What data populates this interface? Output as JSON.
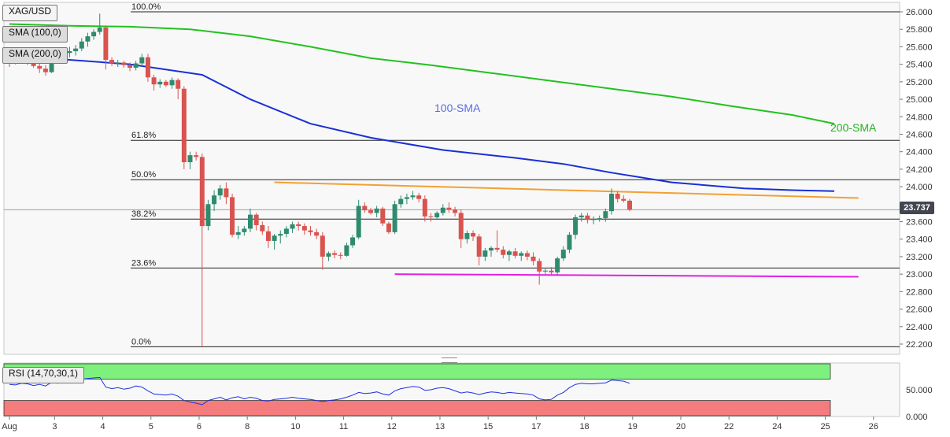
{
  "symbol": "XAG/USD",
  "indicators": {
    "sma100_label": "SMA (100,0)",
    "sma200_label": "SMA (200,0)",
    "rsi_label": "RSI (14,70,30,1)"
  },
  "annotations": {
    "sma100": "100-SMA",
    "sma200": "200-SMA"
  },
  "current_price": "23.737",
  "colors": {
    "up": "#2e8b6e",
    "down": "#d9534f",
    "sma100": "#1a2fd6",
    "sma200": "#22c21e",
    "resistance": "#f2a033",
    "support": "#e020e0",
    "rsi": "#1f2fe0",
    "rsi_overbought": "#7ef07e",
    "rsi_oversold": "#f47c7c"
  },
  "chart_data": [
    {
      "type": "candlestick",
      "title": "XAG/USD",
      "ylim": [
        22.1,
        26.1
      ],
      "y_ticks": [
        "26.000",
        "25.800",
        "25.600",
        "25.400",
        "25.200",
        "25.000",
        "24.800",
        "24.600",
        "24.400",
        "24.200",
        "24.000",
        "23.800",
        "23.600",
        "23.400",
        "23.200",
        "23.000",
        "22.800",
        "22.600",
        "22.400",
        "22.200"
      ],
      "x_ticks": [
        {
          "label": "Aug",
          "i": 0.5
        },
        {
          "label": "3",
          "i": 7.5
        },
        {
          "label": "4",
          "i": 15.5
        },
        {
          "label": "5",
          "i": 23.5
        },
        {
          "label": "6",
          "i": 31.5
        },
        {
          "label": "8",
          "i": 39.5
        },
        {
          "label": "10",
          "i": 47.5
        },
        {
          "label": "11",
          "i": 55.5
        },
        {
          "label": "12",
          "i": 63.5
        },
        {
          "label": "13",
          "i": 71.5
        },
        {
          "label": "15",
          "i": 79.5
        },
        {
          "label": "17",
          "i": 87.5
        },
        {
          "label": "18",
          "i": 95.5
        },
        {
          "label": "19",
          "i": 103.5
        },
        {
          "label": "20",
          "i": 111.5
        },
        {
          "label": "22",
          "i": 119.5
        },
        {
          "label": "24",
          "i": 127.5
        },
        {
          "label": "25",
          "i": 135.5
        },
        {
          "label": "26",
          "i": 143.5
        }
      ],
      "fibonacci": [
        {
          "label": "100.0%",
          "price": 26.0
        },
        {
          "label": "61.8%",
          "price": 24.53
        },
        {
          "label": "50.0%",
          "price": 24.08
        },
        {
          "label": "38.2%",
          "price": 23.63
        },
        {
          "label": "23.6%",
          "price": 23.07
        },
        {
          "label": "0.0%",
          "price": 22.17
        }
      ],
      "resistance_line": [
        {
          "i": 44,
          "price": 24.05
        },
        {
          "i": 141,
          "price": 23.87
        }
      ],
      "support_line": [
        {
          "i": 64,
          "price": 23.0
        },
        {
          "i": 141,
          "price": 22.97
        }
      ],
      "sma100": [
        [
          0,
          25.5
        ],
        [
          20,
          25.4
        ],
        [
          32,
          25.28
        ],
        [
          40,
          25.0
        ],
        [
          50,
          24.72
        ],
        [
          60,
          24.56
        ],
        [
          72,
          24.42
        ],
        [
          84,
          24.33
        ],
        [
          92,
          24.26
        ],
        [
          100,
          24.16
        ],
        [
          110,
          24.05
        ],
        [
          122,
          23.98
        ],
        [
          130,
          23.96
        ],
        [
          137,
          23.95
        ]
      ],
      "sma200": [
        [
          0,
          25.86
        ],
        [
          10,
          25.84
        ],
        [
          20,
          25.83
        ],
        [
          30,
          25.8
        ],
        [
          40,
          25.72
        ],
        [
          50,
          25.6
        ],
        [
          60,
          25.47
        ],
        [
          70,
          25.39
        ],
        [
          80,
          25.3
        ],
        [
          90,
          25.21
        ],
        [
          100,
          25.12
        ],
        [
          110,
          25.03
        ],
        [
          120,
          24.92
        ],
        [
          130,
          24.82
        ],
        [
          137,
          24.72
        ]
      ],
      "candles": [
        [
          25.5,
          25.58,
          25.37,
          25.42
        ],
        [
          25.42,
          25.5,
          25.4,
          25.47
        ],
        [
          25.47,
          25.55,
          25.42,
          25.45
        ],
        [
          25.45,
          25.48,
          25.39,
          25.42
        ],
        [
          25.42,
          25.45,
          25.36,
          25.38
        ],
        [
          25.38,
          25.41,
          25.3,
          25.35
        ],
        [
          25.35,
          25.39,
          25.27,
          25.31
        ],
        [
          25.31,
          25.48,
          25.3,
          25.45
        ],
        [
          25.45,
          25.55,
          25.42,
          25.5
        ],
        [
          25.5,
          25.56,
          25.45,
          25.53
        ],
        [
          25.53,
          25.6,
          25.48,
          25.55
        ],
        [
          25.55,
          25.62,
          25.5,
          25.58
        ],
        [
          25.58,
          25.7,
          25.55,
          25.66
        ],
        [
          25.66,
          25.76,
          25.6,
          25.72
        ],
        [
          25.72,
          25.8,
          25.68,
          25.77
        ],
        [
          25.77,
          25.98,
          25.74,
          25.82
        ],
        [
          25.82,
          25.84,
          25.34,
          25.45
        ],
        [
          25.45,
          25.48,
          25.38,
          25.41
        ],
        [
          25.41,
          25.45,
          25.37,
          25.42
        ],
        [
          25.42,
          25.44,
          25.36,
          25.39
        ],
        [
          25.39,
          25.42,
          25.32,
          25.36
        ],
        [
          25.36,
          25.44,
          25.33,
          25.41
        ],
        [
          25.41,
          25.52,
          25.38,
          25.48
        ],
        [
          25.48,
          25.52,
          25.2,
          25.25
        ],
        [
          25.25,
          25.28,
          25.1,
          25.17
        ],
        [
          25.17,
          25.23,
          25.13,
          25.2
        ],
        [
          25.2,
          25.22,
          25.14,
          25.16
        ],
        [
          25.16,
          25.25,
          25.12,
          25.22
        ],
        [
          25.22,
          25.24,
          25.0,
          25.12
        ],
        [
          25.12,
          25.15,
          24.2,
          24.28
        ],
        [
          24.28,
          24.4,
          24.2,
          24.36
        ],
        [
          24.36,
          24.4,
          24.3,
          24.34
        ],
        [
          24.34,
          24.38,
          22.17,
          23.55
        ],
        [
          23.55,
          23.85,
          23.5,
          23.8
        ],
        [
          23.8,
          23.96,
          23.72,
          23.9
        ],
        [
          23.9,
          24.02,
          23.85,
          23.98
        ],
        [
          23.98,
          24.05,
          23.8,
          23.88
        ],
        [
          23.88,
          23.92,
          23.42,
          23.45
        ],
        [
          23.45,
          23.55,
          23.4,
          23.48
        ],
        [
          23.48,
          23.55,
          23.44,
          23.52
        ],
        [
          23.52,
          23.75,
          23.48,
          23.68
        ],
        [
          23.68,
          23.7,
          23.5,
          23.56
        ],
        [
          23.56,
          23.6,
          23.45,
          23.49
        ],
        [
          23.49,
          23.55,
          23.3,
          23.38
        ],
        [
          23.38,
          23.46,
          23.28,
          23.44
        ],
        [
          23.44,
          23.5,
          23.35,
          23.46
        ],
        [
          23.46,
          23.55,
          23.42,
          23.52
        ],
        [
          23.52,
          23.6,
          23.47,
          23.57
        ],
        [
          23.57,
          23.6,
          23.5,
          23.55
        ],
        [
          23.55,
          23.58,
          23.45,
          23.5
        ],
        [
          23.5,
          23.55,
          23.44,
          23.48
        ],
        [
          23.48,
          23.52,
          23.4,
          23.44
        ],
        [
          23.44,
          23.48,
          23.05,
          23.2
        ],
        [
          23.2,
          23.26,
          23.15,
          23.24
        ],
        [
          23.24,
          23.27,
          23.18,
          23.22
        ],
        [
          23.22,
          23.25,
          23.17,
          23.21
        ],
        [
          23.21,
          23.36,
          23.2,
          23.33
        ],
        [
          23.33,
          23.45,
          23.3,
          23.42
        ],
        [
          23.42,
          23.85,
          23.4,
          23.78
        ],
        [
          23.78,
          23.82,
          23.7,
          23.73
        ],
        [
          23.73,
          23.76,
          23.68,
          23.7
        ],
        [
          23.7,
          23.78,
          23.65,
          23.75
        ],
        [
          23.75,
          23.77,
          23.55,
          23.58
        ],
        [
          23.58,
          23.6,
          23.46,
          23.48
        ],
        [
          23.48,
          23.84,
          23.46,
          23.8
        ],
        [
          23.8,
          23.9,
          23.76,
          23.86
        ],
        [
          23.86,
          23.92,
          23.8,
          23.88
        ],
        [
          23.88,
          23.95,
          23.85,
          23.9
        ],
        [
          23.9,
          23.93,
          23.82,
          23.86
        ],
        [
          23.86,
          23.9,
          23.6,
          23.66
        ],
        [
          23.66,
          23.7,
          23.6,
          23.65
        ],
        [
          23.65,
          23.72,
          23.62,
          23.7
        ],
        [
          23.7,
          23.8,
          23.67,
          23.76
        ],
        [
          23.76,
          23.82,
          23.7,
          23.74
        ],
        [
          23.74,
          23.77,
          23.66,
          23.7
        ],
        [
          23.7,
          23.74,
          23.3,
          23.4
        ],
        [
          23.4,
          23.5,
          23.35,
          23.47
        ],
        [
          23.47,
          23.5,
          23.38,
          23.43
        ],
        [
          23.43,
          23.46,
          23.1,
          23.2
        ],
        [
          23.2,
          23.3,
          23.15,
          23.27
        ],
        [
          23.27,
          23.32,
          23.2,
          23.3
        ],
        [
          23.3,
          23.5,
          23.25,
          23.28
        ],
        [
          23.28,
          23.32,
          23.18,
          23.22
        ],
        [
          23.22,
          23.28,
          23.15,
          23.26
        ],
        [
          23.26,
          23.3,
          23.18,
          23.21
        ],
        [
          23.21,
          23.26,
          23.15,
          23.24
        ],
        [
          23.24,
          23.27,
          23.16,
          23.2
        ],
        [
          23.2,
          23.25,
          23.1,
          23.15
        ],
        [
          23.15,
          23.18,
          22.88,
          23.03
        ],
        [
          23.03,
          23.06,
          23.0,
          23.04
        ],
        [
          23.04,
          23.08,
          22.98,
          23.02
        ],
        [
          23.02,
          23.2,
          22.99,
          23.18
        ],
        [
          23.18,
          23.32,
          23.15,
          23.28
        ],
        [
          23.28,
          23.48,
          23.24,
          23.45
        ],
        [
          23.45,
          23.68,
          23.4,
          23.65
        ],
        [
          23.65,
          23.7,
          23.6,
          23.67
        ],
        [
          23.67,
          23.7,
          23.58,
          23.62
        ],
        [
          23.62,
          23.66,
          23.57,
          23.63
        ],
        [
          23.63,
          23.67,
          23.6,
          23.64
        ],
        [
          23.64,
          23.75,
          23.6,
          23.72
        ],
        [
          23.72,
          23.98,
          23.68,
          23.92
        ],
        [
          23.92,
          23.95,
          23.82,
          23.86
        ],
        [
          23.86,
          23.9,
          23.82,
          23.84
        ],
        [
          23.84,
          23.86,
          23.72,
          23.74
        ]
      ]
    },
    {
      "type": "line",
      "title": "RSI (14,70,30,1)",
      "ylim": [
        0,
        100
      ],
      "y_ticks": [
        "50.000",
        "0.000"
      ],
      "overbought": 70,
      "oversold": 30,
      "values_note_free": true,
      "values": [
        60,
        59,
        62,
        61,
        58,
        60,
        57,
        64,
        62,
        65,
        66,
        68,
        70,
        71,
        72,
        73,
        55,
        52,
        54,
        51,
        53,
        57,
        55,
        48,
        42,
        41,
        40,
        42,
        38,
        30,
        27,
        25,
        22,
        30,
        33,
        36,
        31,
        35,
        37,
        33,
        36,
        34,
        30,
        29,
        32,
        33,
        34,
        36,
        34,
        33,
        32,
        30,
        28,
        30,
        31,
        33,
        36,
        40,
        45,
        43,
        44,
        46,
        42,
        40,
        48,
        52,
        54,
        56,
        55,
        49,
        50,
        53,
        54,
        52,
        48,
        44,
        46,
        44,
        41,
        44,
        46,
        45,
        43,
        45,
        44,
        43,
        42,
        40,
        33,
        31,
        32,
        40,
        45,
        54,
        60,
        62,
        61,
        61,
        62,
        63,
        68,
        67,
        66,
        62
      ]
    }
  ]
}
